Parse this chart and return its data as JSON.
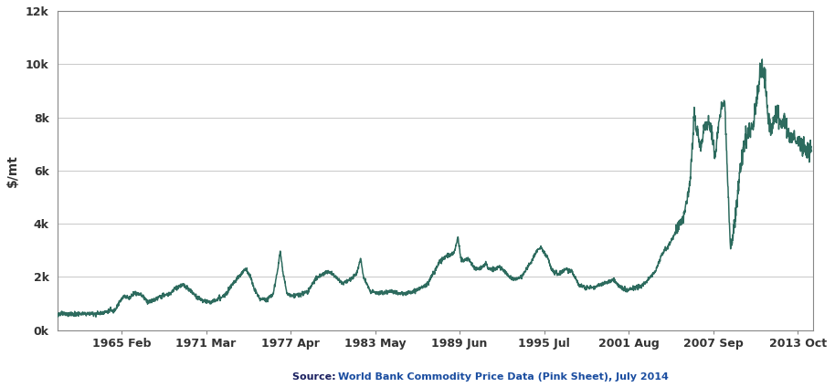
{
  "ylabel": "$/mt",
  "source_plain": "Source: ",
  "source_link": "World Bank Commodity Price Data (Pink Sheet), July 2014",
  "line_color": "#2d6b5e",
  "background_color": "#ffffff",
  "ylim": [
    0,
    12000
  ],
  "yticks": [
    0,
    2000,
    4000,
    6000,
    8000,
    10000,
    12000
  ],
  "ytick_labels": [
    "0k",
    "2k",
    "4k",
    "6k",
    "8k",
    "10k",
    "12k"
  ],
  "x_tick_labels": [
    "1965 Feb",
    "1971 Mar",
    "1977 Apr",
    "1983 May",
    "1989 Jun",
    "1995 Jul",
    "2001 Aug",
    "2007 Sep",
    "2013 Oct"
  ],
  "x_tick_years": [
    1965.08,
    1971.17,
    1977.25,
    1983.33,
    1989.42,
    1995.5,
    2001.58,
    2007.67,
    2013.75
  ],
  "xlim_start": 1960.5,
  "xlim_end": 2014.85,
  "line_width": 1.1,
  "grid_color": "#cccccc",
  "spine_color": "#888888",
  "tick_color": "#333333",
  "source_color_plain": "#1a2060",
  "source_color_link": "#1a4da0"
}
